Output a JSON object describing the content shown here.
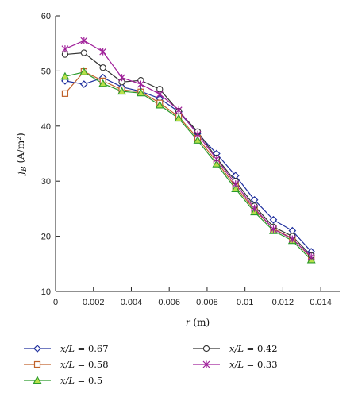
{
  "chart_data": {
    "type": "line",
    "xlabel_symbol": "r",
    "xlabel_unit": "(m)",
    "ylabel_symbol": "j",
    "ylabel_sub": "B",
    "ylabel_unit": "(A/m²)",
    "xlim": [
      0,
      0.015
    ],
    "ylim": [
      10,
      60
    ],
    "x_ticks": [
      0,
      0.002,
      0.004,
      0.006,
      0.008,
      0.01,
      0.012,
      0.014
    ],
    "x_tick_labels": [
      "0",
      "0.002",
      "0.004",
      "0.006",
      "0.008",
      "0.01",
      "0.012",
      "0.014"
    ],
    "y_ticks": [
      10,
      20,
      30,
      40,
      50,
      60
    ],
    "y_tick_labels": [
      "10",
      "20",
      "30",
      "40",
      "50",
      "60"
    ],
    "grid": false,
    "legend_position": "bottom",
    "series": [
      {
        "name_italic": "x/L",
        "name_value": "= 0.67",
        "color": "#1f2f9e",
        "marker": "diamond",
        "x": [
          0.0005,
          0.0015,
          0.0025,
          0.0035,
          0.0045,
          0.0055,
          0.0065,
          0.0075,
          0.0085,
          0.0095,
          0.0105,
          0.0115,
          0.0125,
          0.0135
        ],
        "y": [
          48.2,
          47.6,
          48.8,
          47.1,
          46.3,
          45.0,
          42.6,
          38.7,
          35.0,
          31.0,
          26.6,
          23.0,
          21.0,
          17.2
        ]
      },
      {
        "name_italic": "x/L",
        "name_value": "= 0.58",
        "color": "#c0622a",
        "marker": "square",
        "x": [
          0.0005,
          0.0015,
          0.0025,
          0.0035,
          0.0045,
          0.0055,
          0.0065,
          0.0075,
          0.0085,
          0.0095,
          0.0105,
          0.0115,
          0.0125,
          0.0135
        ],
        "y": [
          45.9,
          49.9,
          48.2,
          46.6,
          46.2,
          44.2,
          41.7,
          37.8,
          33.6,
          29.0,
          24.8,
          21.4,
          19.6,
          16.1
        ]
      },
      {
        "name_italic": "x/L",
        "name_value": "= 0.5",
        "color": "#2a9a2a",
        "marker": "triangle",
        "x": [
          0.0005,
          0.0015,
          0.0025,
          0.0035,
          0.0045,
          0.0055,
          0.0065,
          0.0075,
          0.0085,
          0.0095,
          0.0105,
          0.0115,
          0.0125,
          0.0135
        ],
        "y": [
          49.0,
          49.8,
          47.7,
          46.3,
          46.0,
          43.8,
          41.4,
          37.4,
          33.1,
          28.6,
          24.4,
          21.0,
          19.2,
          15.7
        ]
      },
      {
        "name_italic": "x/L",
        "name_value": "= 0.42",
        "color": "#333333",
        "marker": "circle",
        "x": [
          0.0005,
          0.0015,
          0.0025,
          0.0035,
          0.0045,
          0.0055,
          0.0065,
          0.0075,
          0.0085,
          0.0095,
          0.0105,
          0.0115,
          0.0125,
          0.0135
        ],
        "y": [
          53.0,
          53.3,
          50.6,
          48.0,
          48.3,
          46.7,
          42.7,
          39.0,
          34.2,
          30.0,
          25.5,
          21.7,
          20.0,
          16.5
        ]
      },
      {
        "name_italic": "x/L",
        "name_value": "= 0.33",
        "color": "#a0209a",
        "marker": "asterisk",
        "x": [
          0.0005,
          0.0015,
          0.0025,
          0.0035,
          0.0045,
          0.0055,
          0.0065,
          0.0075,
          0.0085,
          0.0095,
          0.0105,
          0.0115,
          0.0125,
          0.0135
        ],
        "y": [
          54.0,
          55.5,
          53.5,
          48.8,
          47.6,
          45.8,
          42.9,
          38.5,
          34.0,
          29.5,
          25.1,
          21.3,
          19.5,
          16.3
        ]
      }
    ]
  }
}
